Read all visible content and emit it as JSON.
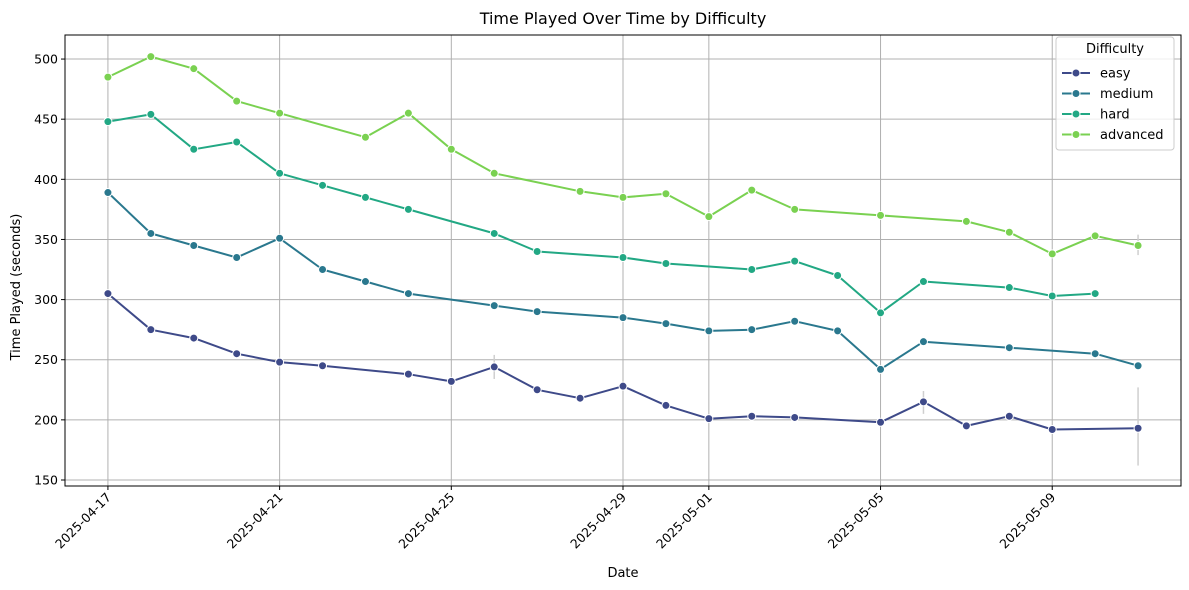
{
  "chart_data": {
    "type": "line",
    "title": "Time Played Over Time by Difficulty",
    "xlabel": "Date",
    "ylabel": "Time Played (seconds)",
    "xlim": [
      "2025-04-16",
      "2025-05-12"
    ],
    "ylim": [
      145,
      520
    ],
    "x_ticks": [
      "2025-04-17",
      "2025-04-21",
      "2025-04-25",
      "2025-04-29",
      "2025-05-01",
      "2025-05-05",
      "2025-05-09"
    ],
    "y_ticks": [
      150,
      200,
      250,
      300,
      350,
      400,
      450,
      500
    ],
    "grid": true,
    "legend": {
      "title": "Difficulty",
      "position": "top-right"
    },
    "series": [
      {
        "name": "easy",
        "color": "#3e4a89",
        "points": [
          [
            "2025-04-17",
            305
          ],
          [
            "2025-04-18",
            275
          ],
          [
            "2025-04-19",
            268
          ],
          [
            "2025-04-20",
            255
          ],
          [
            "2025-04-21",
            248
          ],
          [
            "2025-04-22",
            245
          ],
          [
            "2025-04-24",
            238
          ],
          [
            "2025-04-25",
            232
          ],
          [
            "2025-04-26",
            244
          ],
          [
            "2025-04-27",
            225
          ],
          [
            "2025-04-28",
            218
          ],
          [
            "2025-04-29",
            228
          ],
          [
            "2025-04-30",
            212
          ],
          [
            "2025-05-01",
            201
          ],
          [
            "2025-05-02",
            203
          ],
          [
            "2025-05-03",
            202
          ],
          [
            "2025-05-05",
            198
          ],
          [
            "2025-05-06",
            215
          ],
          [
            "2025-05-07",
            195
          ],
          [
            "2025-05-08",
            203
          ],
          [
            "2025-05-09",
            192
          ],
          [
            "2025-05-11",
            193
          ]
        ]
      },
      {
        "name": "medium",
        "color": "#2a788e",
        "points": [
          [
            "2025-04-17",
            389
          ],
          [
            "2025-04-18",
            355
          ],
          [
            "2025-04-19",
            345
          ],
          [
            "2025-04-20",
            335
          ],
          [
            "2025-04-21",
            351
          ],
          [
            "2025-04-22",
            325
          ],
          [
            "2025-04-23",
            315
          ],
          [
            "2025-04-24",
            305
          ],
          [
            "2025-04-26",
            295
          ],
          [
            "2025-04-27",
            290
          ],
          [
            "2025-04-29",
            285
          ],
          [
            "2025-04-30",
            280
          ],
          [
            "2025-05-01",
            274
          ],
          [
            "2025-05-02",
            275
          ],
          [
            "2025-05-03",
            282
          ],
          [
            "2025-05-04",
            274
          ],
          [
            "2025-05-05",
            242
          ],
          [
            "2025-05-06",
            265
          ],
          [
            "2025-05-08",
            260
          ],
          [
            "2025-05-10",
            255
          ],
          [
            "2025-05-11",
            245
          ]
        ]
      },
      {
        "name": "hard",
        "color": "#22a884",
        "points": [
          [
            "2025-04-17",
            448
          ],
          [
            "2025-04-18",
            454
          ],
          [
            "2025-04-19",
            425
          ],
          [
            "2025-04-20",
            431
          ],
          [
            "2025-04-21",
            405
          ],
          [
            "2025-04-22",
            395
          ],
          [
            "2025-04-23",
            385
          ],
          [
            "2025-04-24",
            375
          ],
          [
            "2025-04-26",
            355
          ],
          [
            "2025-04-27",
            340
          ],
          [
            "2025-04-29",
            335
          ],
          [
            "2025-04-30",
            330
          ],
          [
            "2025-05-02",
            325
          ],
          [
            "2025-05-03",
            332
          ],
          [
            "2025-05-04",
            320
          ],
          [
            "2025-05-05",
            289
          ],
          [
            "2025-05-06",
            315
          ],
          [
            "2025-05-08",
            310
          ],
          [
            "2025-05-09",
            303
          ],
          [
            "2025-05-10",
            305
          ]
        ]
      },
      {
        "name": "advanced",
        "color": "#7ad151",
        "points": [
          [
            "2025-04-17",
            485
          ],
          [
            "2025-04-18",
            502
          ],
          [
            "2025-04-19",
            492
          ],
          [
            "2025-04-20",
            465
          ],
          [
            "2025-04-21",
            455
          ],
          [
            "2025-04-23",
            435
          ],
          [
            "2025-04-24",
            455
          ],
          [
            "2025-04-25",
            425
          ],
          [
            "2025-04-26",
            405
          ],
          [
            "2025-04-28",
            390
          ],
          [
            "2025-04-29",
            385
          ],
          [
            "2025-04-30",
            388
          ],
          [
            "2025-05-01",
            369
          ],
          [
            "2025-05-02",
            391
          ],
          [
            "2025-05-03",
            375
          ],
          [
            "2025-05-05",
            370
          ],
          [
            "2025-05-07",
            365
          ],
          [
            "2025-05-08",
            356
          ],
          [
            "2025-05-09",
            338
          ],
          [
            "2025-05-10",
            353
          ],
          [
            "2025-05-11",
            345
          ]
        ]
      }
    ],
    "error_bars": [
      {
        "x": "2025-04-26",
        "low": 234,
        "high": 254
      },
      {
        "x": "2025-05-06",
        "low": 205,
        "high": 224
      },
      {
        "x": "2025-05-11",
        "low": 162,
        "high": 227
      },
      {
        "x": "2025-05-11",
        "low": 337,
        "high": 354
      }
    ]
  }
}
